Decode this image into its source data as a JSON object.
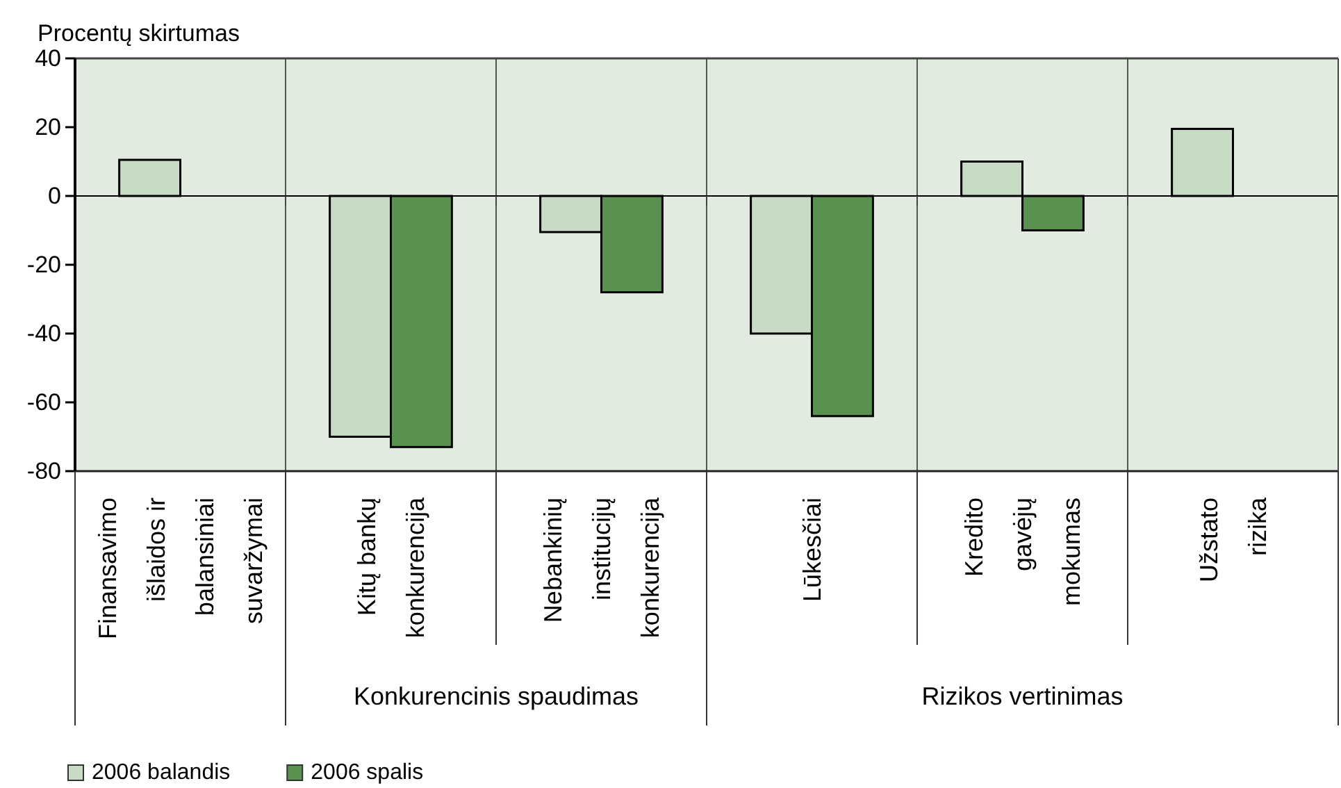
{
  "chart_data": {
    "type": "bar",
    "ylabel": "Procentų skirtumas",
    "categories": [
      "Finansavimo išlaidos ir balansiniai suvaržymai",
      "Kitų bankų konkurencija",
      "Nebankinių institucijų konkurencija",
      "Lūkesčiai",
      "Kredito gavėjų mokumas",
      "Užstato rizika"
    ],
    "series": [
      {
        "name": "2006 balandis",
        "color": "#c8dbc5",
        "values": [
          10.5,
          -70,
          -10.5,
          -40,
          10,
          19.5
        ]
      },
      {
        "name": "2006 spalis",
        "color": "#5a9150",
        "values": [
          null,
          -73,
          -28,
          -64,
          -10,
          null
        ]
      }
    ],
    "ylim": [
      -80,
      40
    ],
    "yticks": [
      -80,
      -60,
      -40,
      -20,
      0,
      20,
      40
    ],
    "grid": "x",
    "legend": "bottom",
    "annotations": [
      "Konkurencinis spaudimas",
      "Rizikos vertinimas"
    ]
  }
}
